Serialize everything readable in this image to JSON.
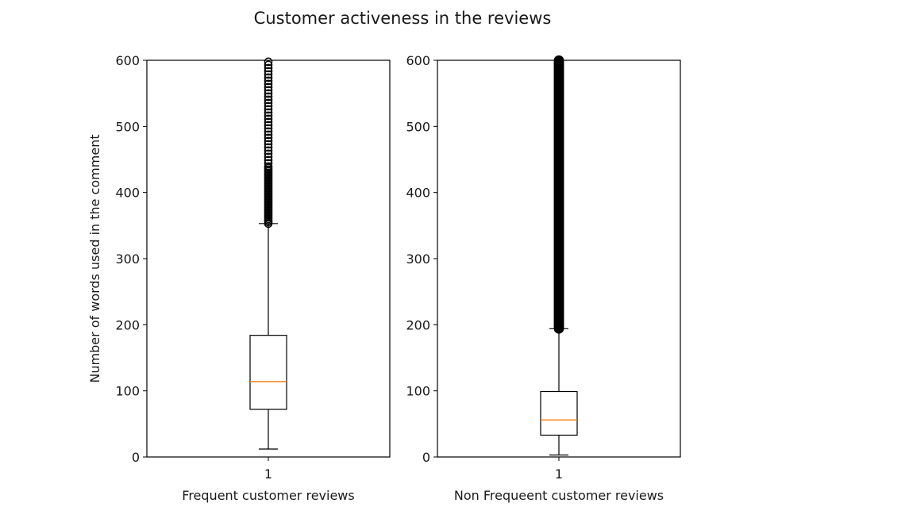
{
  "chart_data": {
    "type": "box",
    "title": "Customer activeness in the reviews",
    "ylabel": "Number of words used in the comment",
    "ylim": [
      0,
      600
    ],
    "yticks": [
      0,
      100,
      200,
      300,
      400,
      500,
      600
    ],
    "colors": {
      "median": "#ff7f0e",
      "box": "#000000",
      "outlier": "#000000",
      "background": "#ffffff"
    },
    "panels": [
      {
        "xlabel": "Frequent customer reviews",
        "xtick": "1",
        "stats": {
          "whisker_low": 12,
          "q1": 72,
          "median": 114,
          "q3": 184,
          "whisker_high": 353
        },
        "outliers_from": 353,
        "outliers_to": 600,
        "outlier_density": "sparse"
      },
      {
        "xlabel": "Non Frequeent customer reviews",
        "xtick": "1",
        "stats": {
          "whisker_low": 3,
          "q1": 33,
          "median": 56,
          "q3": 99,
          "whisker_high": 194
        },
        "outliers_from": 194,
        "outliers_to": 600,
        "outlier_density": "dense"
      }
    ]
  }
}
